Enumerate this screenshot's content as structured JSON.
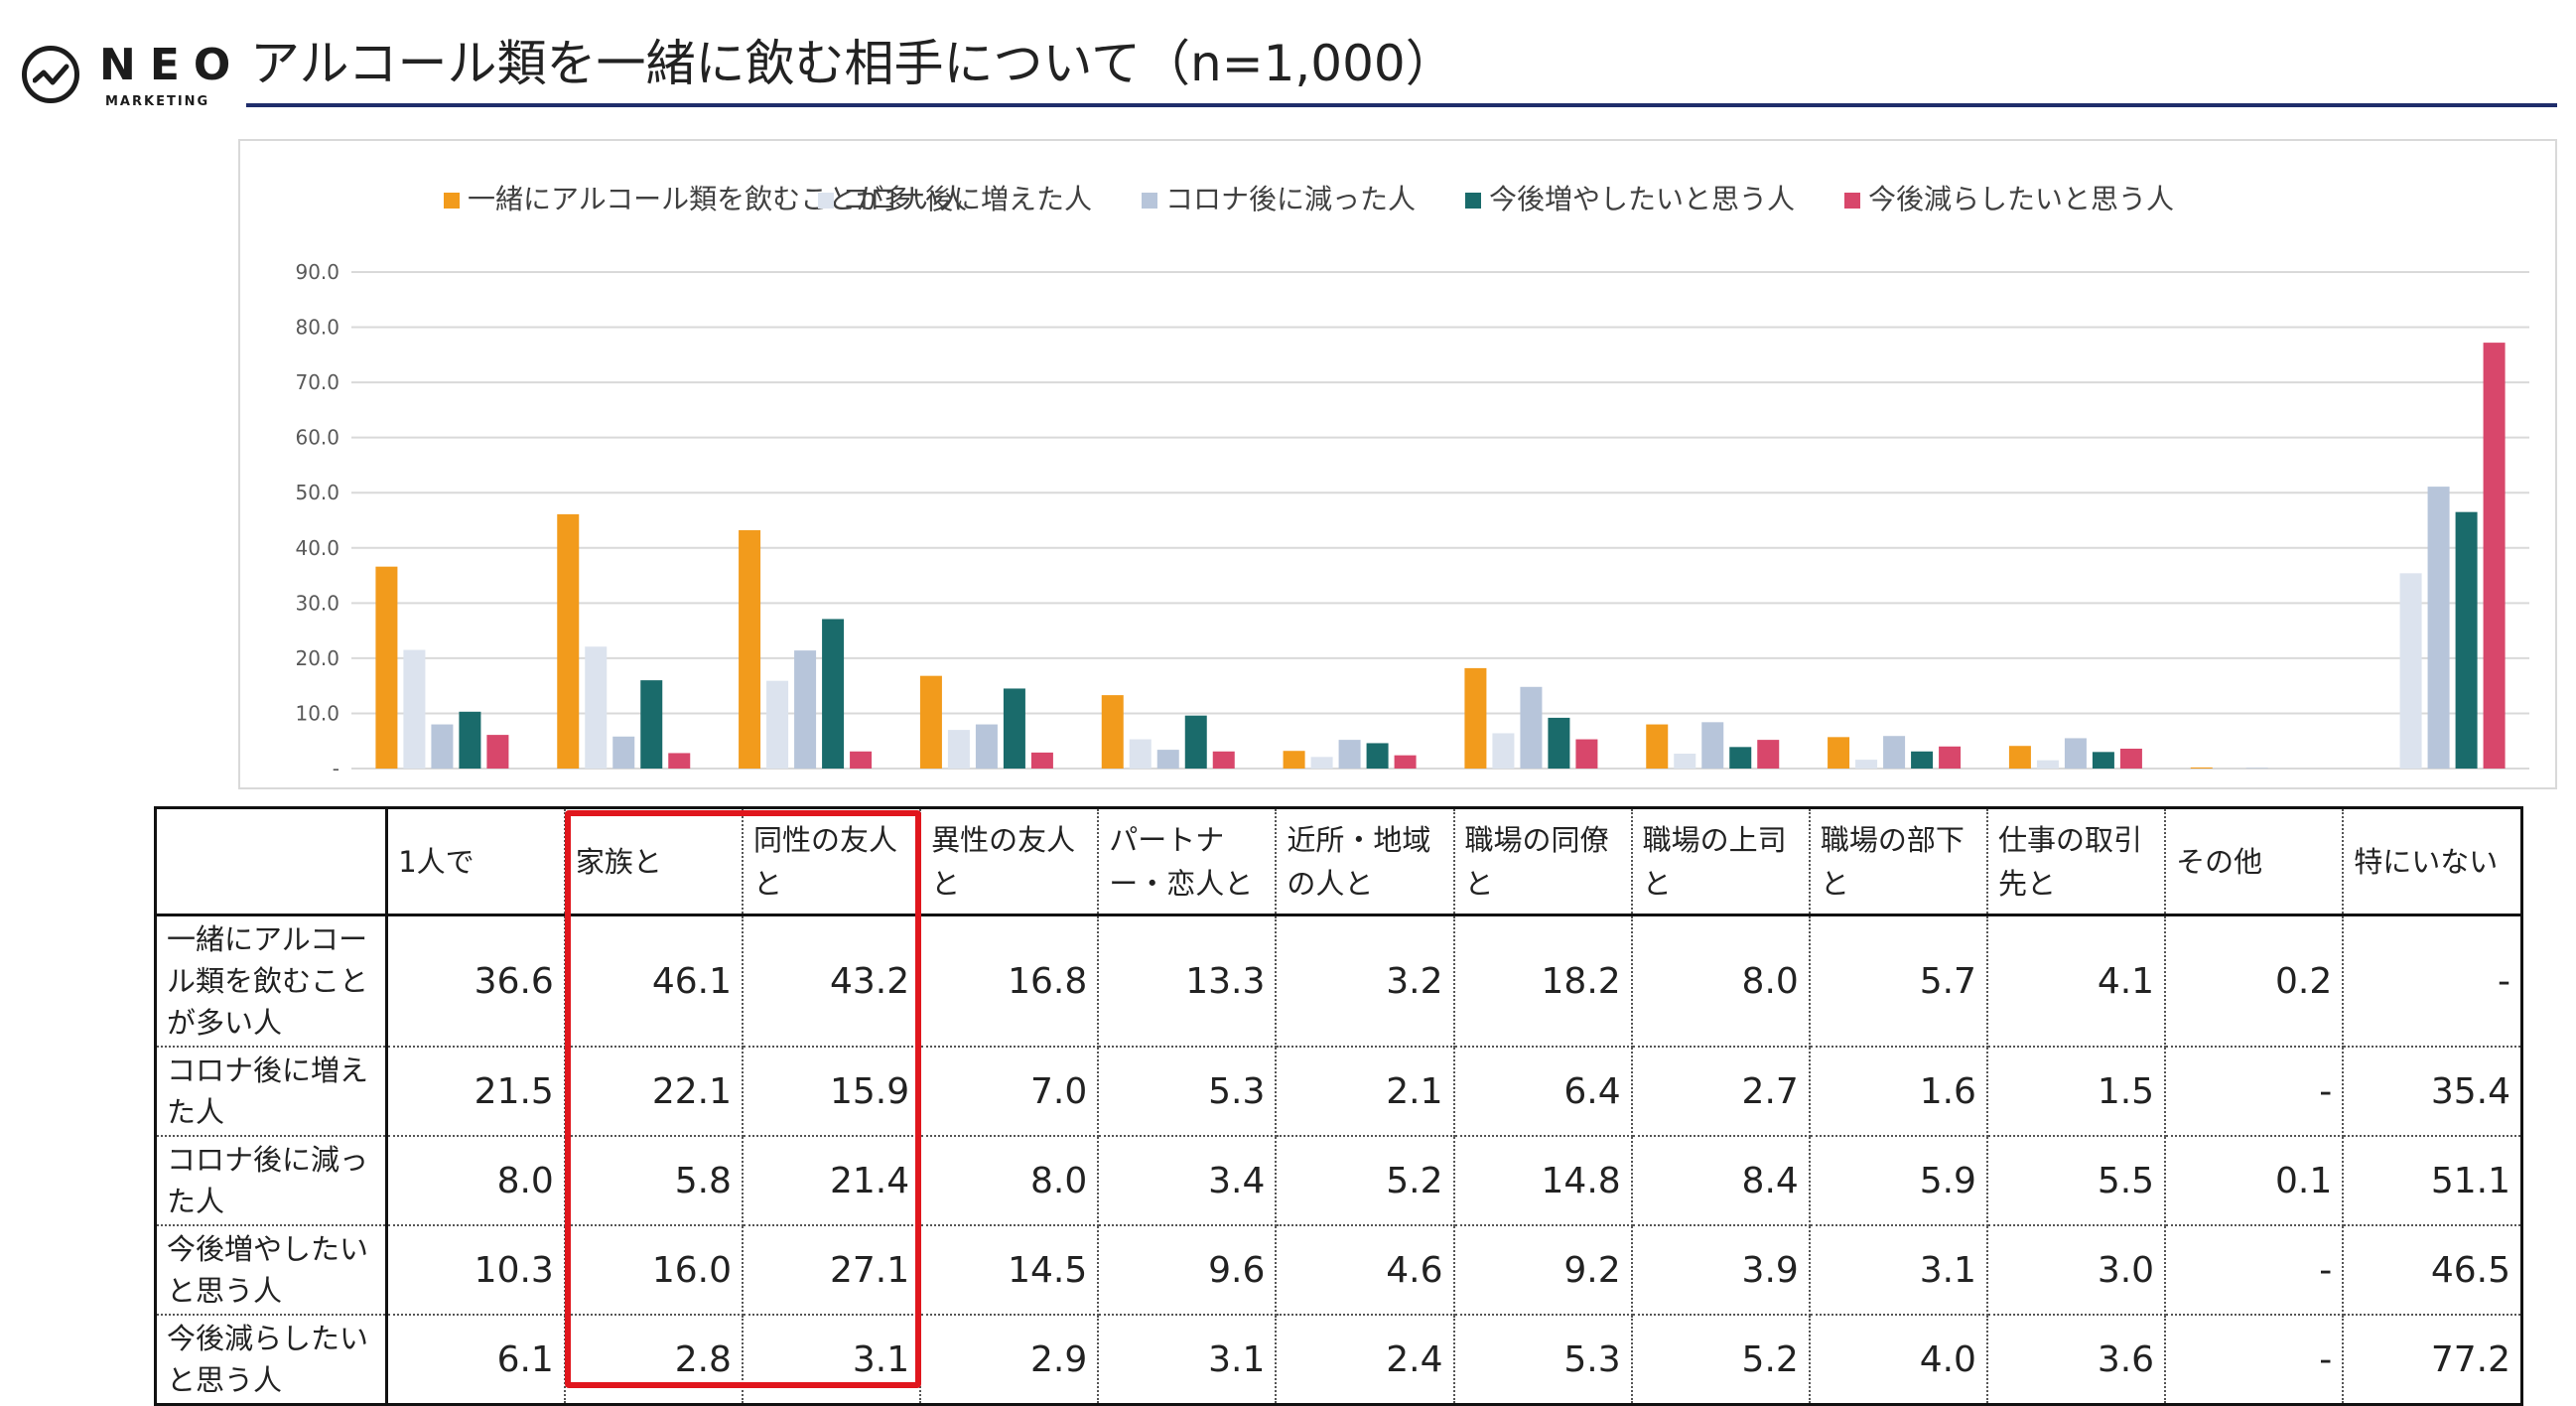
{
  "header": {
    "logo_text": "NEO",
    "logo_sub": "MARKETING",
    "title": "アルコール類を一緒に飲む相手について（n=1,000）"
  },
  "colors": {
    "series": [
      "#f29b1c",
      "#dce3ee",
      "#b7c5da",
      "#1a6b6b",
      "#d8476b"
    ],
    "title_rule": "#1f2d6b",
    "highlight": "#e0161d"
  },
  "chart_data": {
    "type": "bar",
    "categories": [
      "1人で",
      "家族と",
      "同性の友人と",
      "異性の友人と",
      "パートナー・恋人と",
      "近所・地域の人と",
      "職場の同僚と",
      "職場の上司と",
      "職場の部下と",
      "仕事の取引先と",
      "その他",
      "特にいない"
    ],
    "series": [
      {
        "name": "一緒にアルコール類を飲むことが多い人",
        "values": [
          36.6,
          46.1,
          43.2,
          16.8,
          13.3,
          3.2,
          18.2,
          8.0,
          5.7,
          4.1,
          0.2,
          null
        ]
      },
      {
        "name": "コロナ後に増えた人",
        "values": [
          21.5,
          22.1,
          15.9,
          7.0,
          5.3,
          2.1,
          6.4,
          2.7,
          1.6,
          1.5,
          null,
          35.4
        ]
      },
      {
        "name": "コロナ後に減った人",
        "values": [
          8.0,
          5.8,
          21.4,
          8.0,
          3.4,
          5.2,
          14.8,
          8.4,
          5.9,
          5.5,
          0.1,
          51.1
        ]
      },
      {
        "name": "今後増やしたいと思う人",
        "values": [
          10.3,
          16.0,
          27.1,
          14.5,
          9.6,
          4.6,
          9.2,
          3.9,
          3.1,
          3.0,
          null,
          46.5
        ]
      },
      {
        "name": "今後減らしたいと思う人",
        "values": [
          6.1,
          2.8,
          3.1,
          2.9,
          3.1,
          2.4,
          5.3,
          5.2,
          4.0,
          3.6,
          null,
          77.2
        ]
      }
    ],
    "ylim": [
      0,
      90
    ],
    "yticks": [
      "-",
      "10.0",
      "20.0",
      "30.0",
      "40.0",
      "50.0",
      "60.0",
      "70.0",
      "80.0",
      "90.0"
    ],
    "grid": true,
    "legend_position": "top"
  },
  "table": {
    "columns": [
      "1人で",
      "家族と",
      "同性の友人と",
      "異性の友人と",
      "パートナー・恋人と",
      "近所・地域の人と",
      "職場の同僚と",
      "職場の上司と",
      "職場の部下と",
      "仕事の取引先と",
      "その他",
      "特にいない"
    ],
    "rows": [
      {
        "label": "一緒にアルコール類を飲むことが多い人",
        "cells": [
          "36.6",
          "46.1",
          "43.2",
          "16.8",
          "13.3",
          "3.2",
          "18.2",
          "8.0",
          "5.7",
          "4.1",
          "0.2",
          "-"
        ]
      },
      {
        "label": "コロナ後に増えた人",
        "cells": [
          "21.5",
          "22.1",
          "15.9",
          "7.0",
          "5.3",
          "2.1",
          "6.4",
          "2.7",
          "1.6",
          "1.5",
          "-",
          "35.4"
        ]
      },
      {
        "label": "コロナ後に減った人",
        "cells": [
          "8.0",
          "5.8",
          "21.4",
          "8.0",
          "3.4",
          "5.2",
          "14.8",
          "8.4",
          "5.9",
          "5.5",
          "0.1",
          "51.1"
        ]
      },
      {
        "label": "今後増やしたいと思う人",
        "cells": [
          "10.3",
          "16.0",
          "27.1",
          "14.5",
          "9.6",
          "4.6",
          "9.2",
          "3.9",
          "3.1",
          "3.0",
          "-",
          "46.5"
        ]
      },
      {
        "label": "今後減らしたいと思う人",
        "cells": [
          "6.1",
          "2.8",
          "3.1",
          "2.9",
          "3.1",
          "2.4",
          "5.3",
          "5.2",
          "4.0",
          "3.6",
          "-",
          "77.2"
        ]
      }
    ]
  }
}
